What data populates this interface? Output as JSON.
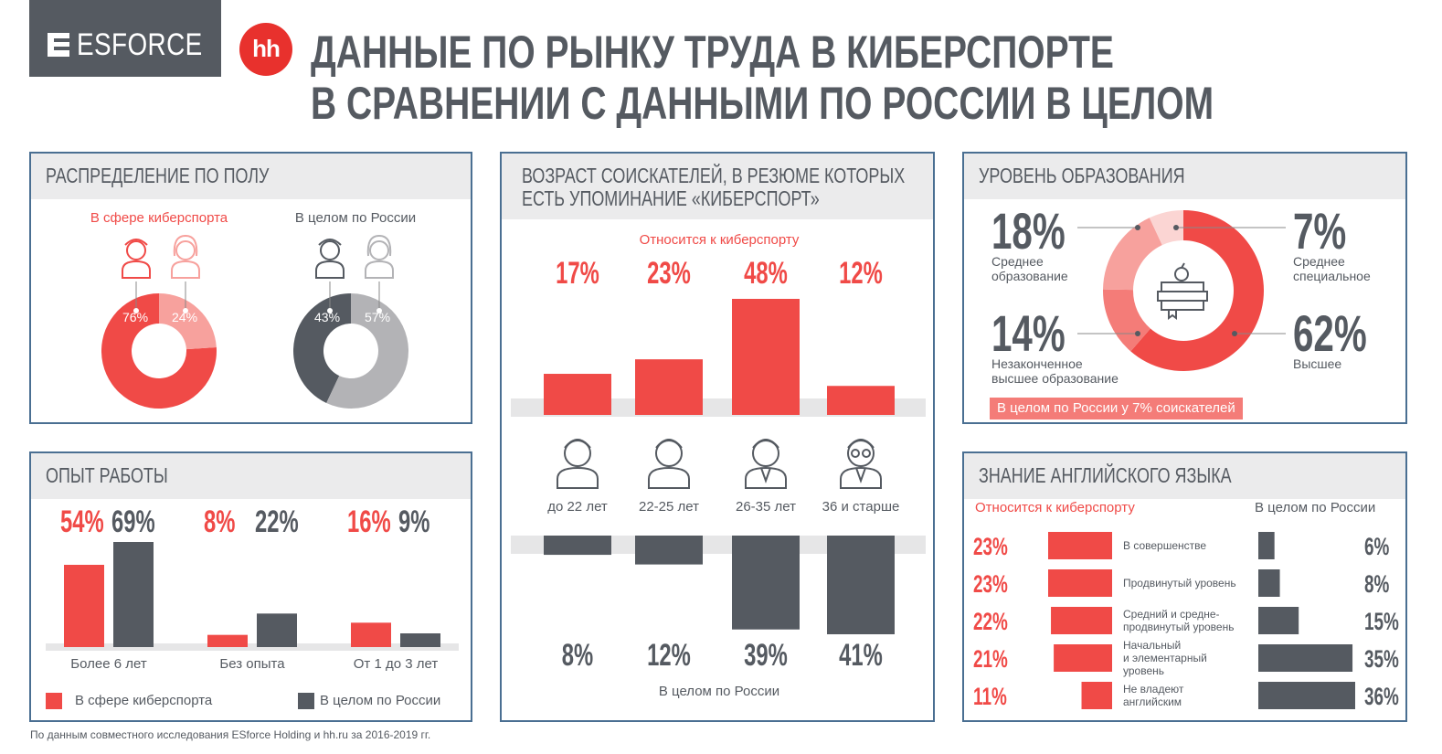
{
  "header": {
    "logo_text": "ESFORCE",
    "hh_text": "hh",
    "title_line1": "ДАННЫЕ ПО РЫНКУ ТРУДА В КИБЕРСПОРТЕ",
    "title_line2": "В СРАВНЕНИИ С ДАННЫМИ ПО РОССИИ В ЦЕЛОМ"
  },
  "footnote": "По данным совместного исследования ESforce Holding и hh.ru за 2016-2019 гг.",
  "colors": {
    "red": "#f04a47",
    "light_red": "#f7a19d",
    "dark": "#555a61",
    "grey": "#b3b3b6",
    "border": "#4a6f92"
  },
  "gender": {
    "title": "РАСПРЕДЕЛЕНИЕ ПО ПОЛУ",
    "esports_label": "В сфере киберспорта",
    "russia_label": "В целом по России"
  },
  "experience": {
    "title": "ОПЫТ РАБОТЫ",
    "legend_esports": "В сфере киберспорта",
    "legend_russia": "В целом по России"
  },
  "age": {
    "title_line1": "ВОЗРАСТ СОИСКАТЕЛЕЙ, В РЕЗЮМЕ КОТОРЫХ",
    "title_line2": "ЕСТЬ УПОМИНАНИЕ «КИБЕРСПОРТ»",
    "top_label": "Относится к киберспорту",
    "bottom_label": "В целом по России"
  },
  "education": {
    "title": "УРОВЕНЬ ОБРАЗОВАНИЯ",
    "note": "В целом по России у 7% соискателей"
  },
  "english": {
    "title": "ЗНАНИЕ АНГЛИЙСКОГО ЯЗЫКА",
    "left_label": "Относится к киберспорту",
    "right_label": "В целом по России"
  },
  "chart_data": [
    {
      "type": "pie",
      "id": "gender_esports",
      "labels": [
        "мужчины",
        "женщины"
      ],
      "values": [
        76,
        24
      ],
      "value_labels": [
        "76%",
        "24%"
      ]
    },
    {
      "type": "pie",
      "id": "gender_russia",
      "labels": [
        "мужчины",
        "женщины"
      ],
      "values": [
        43,
        57
      ],
      "value_labels": [
        "43%",
        "57%"
      ]
    },
    {
      "type": "bar",
      "id": "experience",
      "categories": [
        "Более 6 лет",
        "Без опыта",
        "От 1 до 3 лет"
      ],
      "series": [
        {
          "name": "В сфере киберспорта",
          "values": [
            54,
            8,
            16
          ],
          "labels": [
            "54%",
            "8%",
            "16%"
          ]
        },
        {
          "name": "В целом по России",
          "values": [
            69,
            22,
            9
          ],
          "labels": [
            "69%",
            "22%",
            "9%"
          ]
        }
      ]
    },
    {
      "type": "bar",
      "id": "age",
      "categories": [
        "до 22 лет",
        "22-25 лет",
        "26-35 лет",
        "36 и старше"
      ],
      "series": [
        {
          "name": "Относится к киберспорту",
          "values": [
            17,
            23,
            48,
            12
          ],
          "labels": [
            "17%",
            "23%",
            "48%",
            "12%"
          ]
        },
        {
          "name": "В целом по России",
          "values": [
            8,
            12,
            39,
            41
          ],
          "labels": [
            "8%",
            "12%",
            "39%",
            "41%"
          ]
        }
      ]
    },
    {
      "type": "pie",
      "id": "education",
      "categories": [
        "Высшее",
        "Незаконченное высшее образование",
        "Среднее образование",
        "Среднее специальное"
      ],
      "values": [
        62,
        14,
        18,
        7
      ],
      "value_labels": [
        "62%",
        "14%",
        "18%",
        "7%"
      ],
      "label_lines": [
        [
          "Высшее"
        ],
        [
          "Незаконченное",
          "высшее образование"
        ],
        [
          "Среднее",
          "образование"
        ],
        [
          "Среднее",
          "специальное"
        ]
      ]
    },
    {
      "type": "bar",
      "id": "english",
      "categories": [
        "В совершенстве",
        "Продвинутый уровень",
        "Средний и средне-продвинутый уровень",
        "Начальный и элементарный уровень",
        "Не владеют английским"
      ],
      "category_lines": [
        [
          "В совершенстве"
        ],
        [
          "Продвинутый уровень"
        ],
        [
          "Средний и средне-",
          "продвинутый уровень"
        ],
        [
          "Начальный",
          "и элементарный",
          "уровень"
        ],
        [
          "Не владеют",
          "английским"
        ]
      ],
      "series": [
        {
          "name": "Относится к киберспорту",
          "values": [
            23,
            23,
            22,
            21,
            11
          ],
          "labels": [
            "23%",
            "23%",
            "22%",
            "21%",
            "11%"
          ]
        },
        {
          "name": "В целом по России",
          "values": [
            6,
            8,
            15,
            35,
            36
          ],
          "labels": [
            "6%",
            "8%",
            "15%",
            "35%",
            "36%"
          ]
        }
      ]
    }
  ]
}
